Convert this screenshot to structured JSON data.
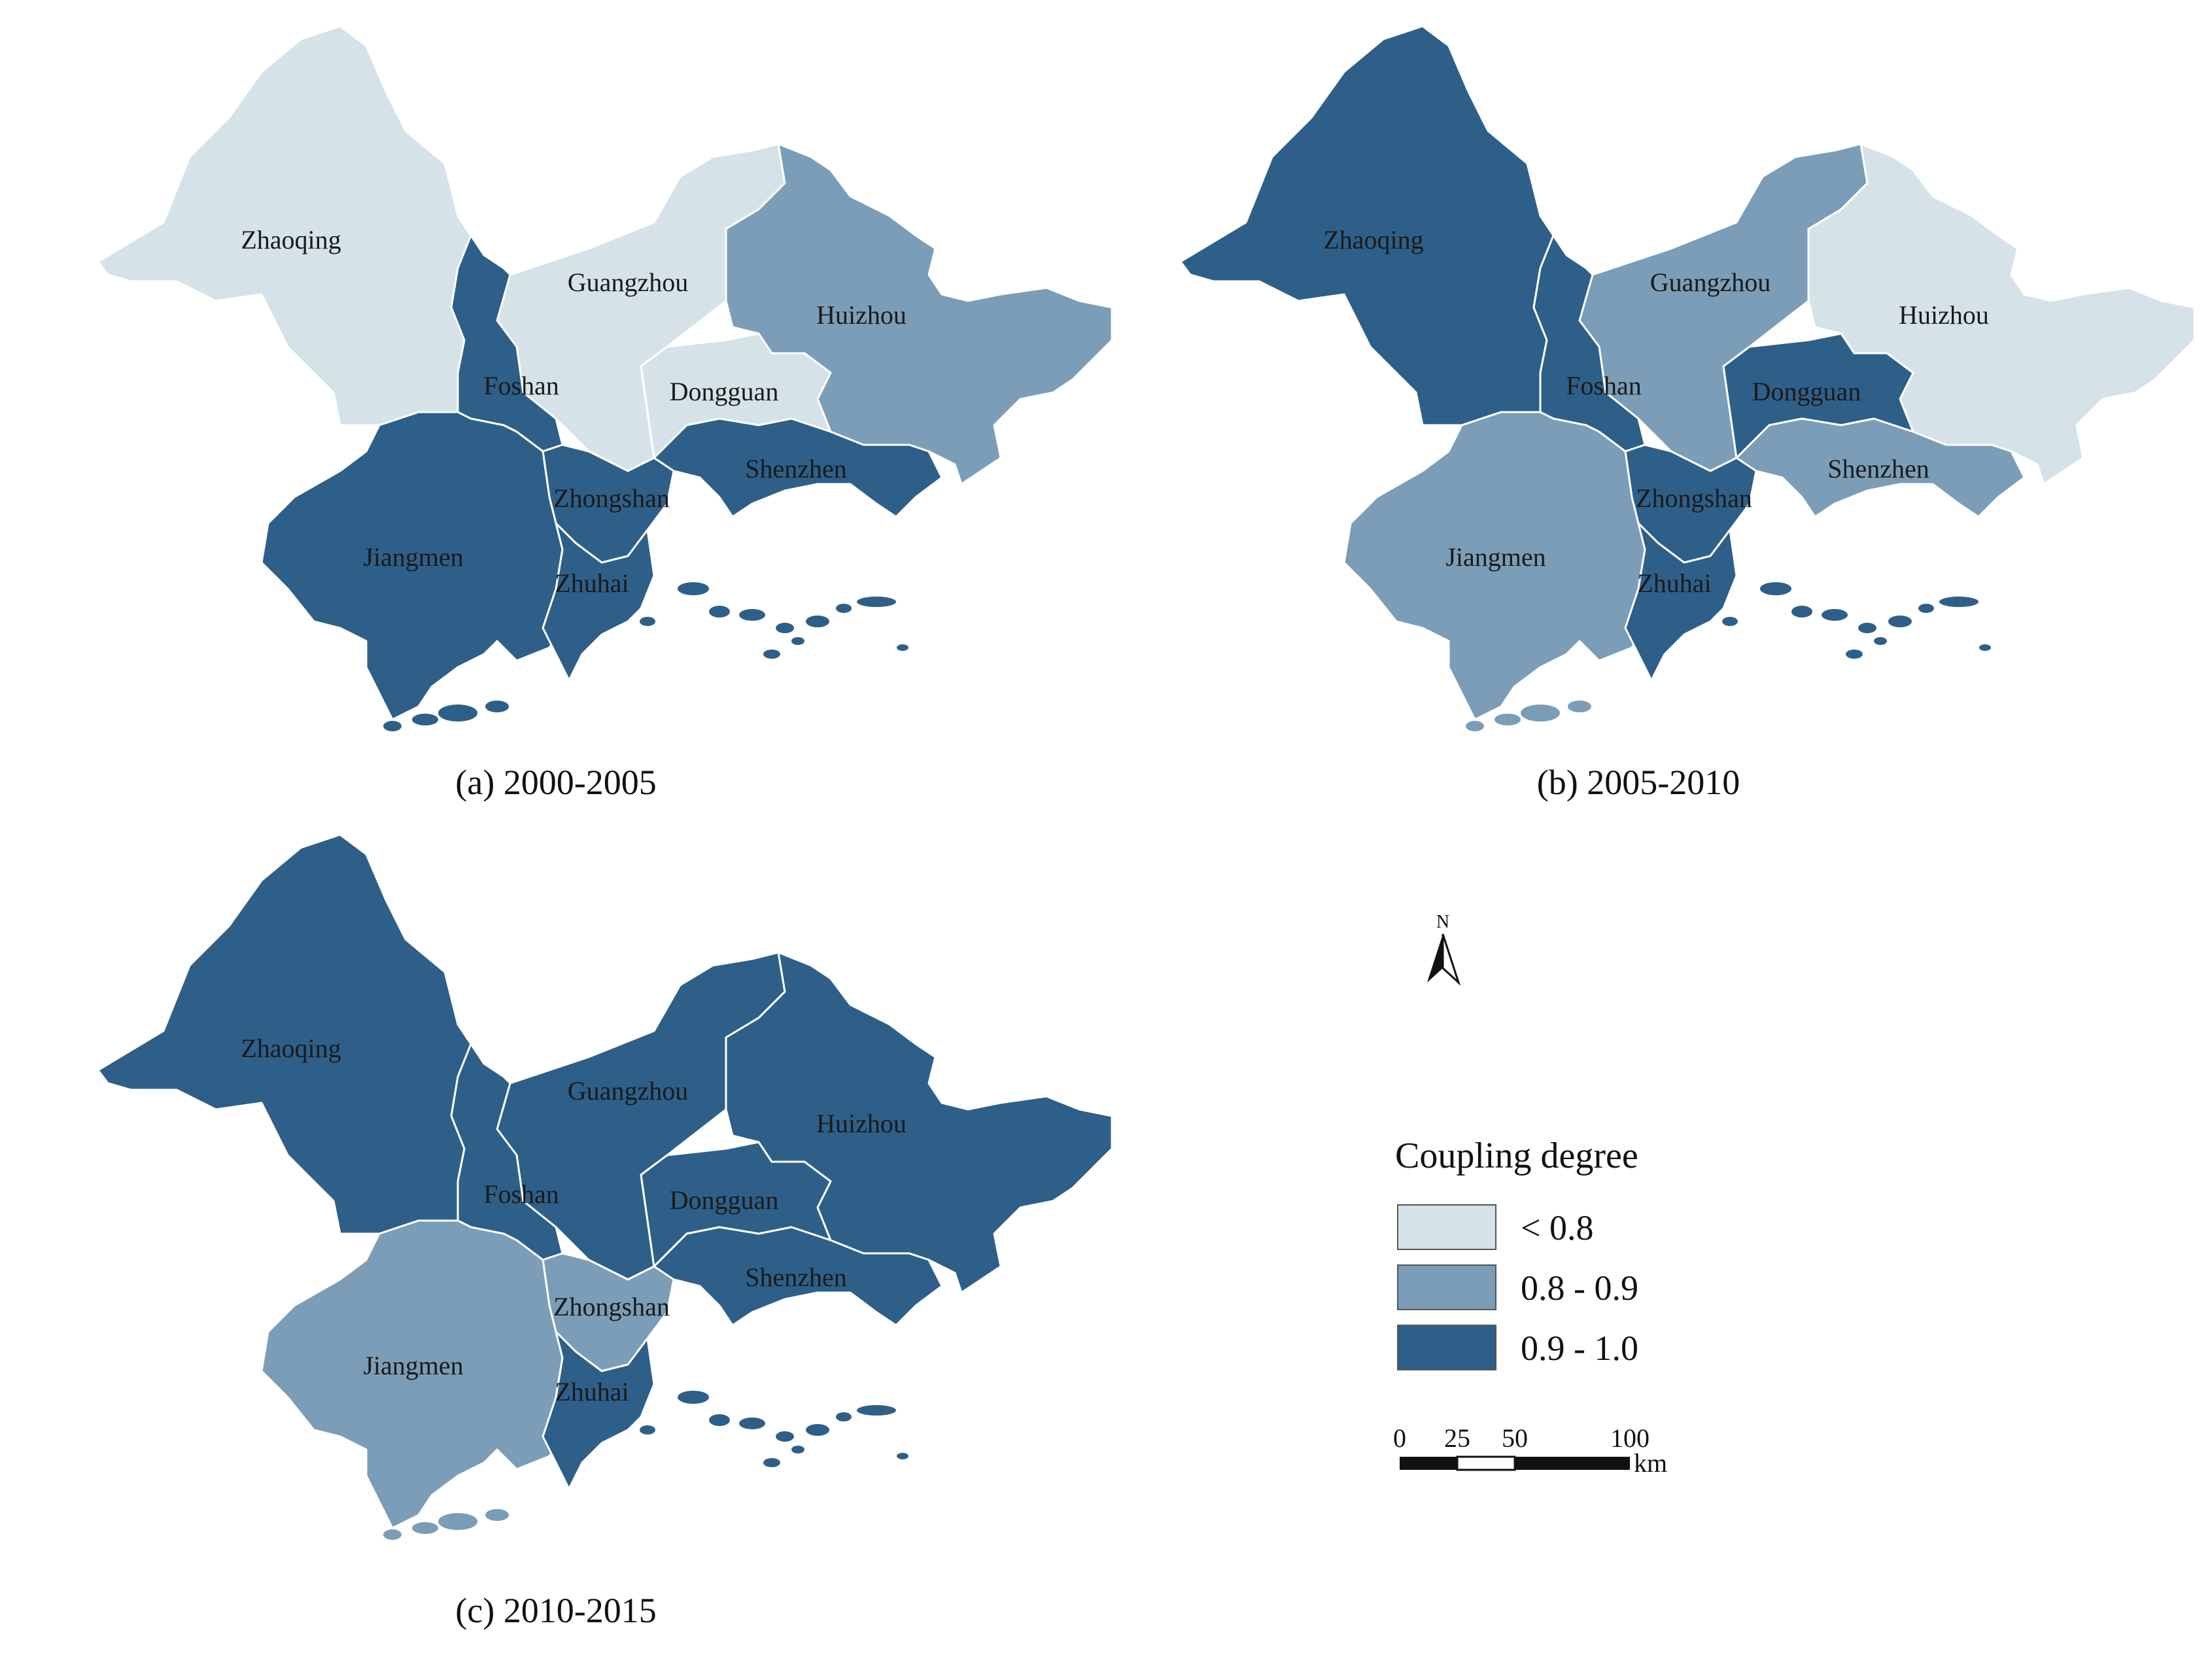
{
  "colors": {
    "low": "#d5e3e8",
    "mid": "#7b9db7",
    "high": "#2e5f88",
    "boundary": "#ffffff"
  },
  "classes": [
    {
      "key": "low",
      "label": "< 0.8"
    },
    {
      "key": "mid",
      "label": "0.8 - 0.9"
    },
    {
      "key": "high",
      "label": "0.9 - 1.0"
    }
  ],
  "legend": {
    "title": "Coupling degree"
  },
  "scalebar": {
    "ticks": [
      "0",
      "25",
      "50",
      "100"
    ],
    "unit": "km"
  },
  "north_arrow": {
    "label": "N"
  },
  "cities": [
    "Zhaoqing",
    "Guangzhou",
    "Huizhou",
    "Foshan",
    "Dongguan",
    "Shenzhen",
    "Zhongshan",
    "Jiangmen",
    "Zhuhai"
  ],
  "maps": [
    {
      "caption": "(a) 2000-2005",
      "values": {
        "Zhaoqing": "low",
        "Guangzhou": "low",
        "Huizhou": "mid",
        "Foshan": "high",
        "Dongguan": "low",
        "Shenzhen": "high",
        "Zhongshan": "high",
        "Jiangmen": "high",
        "Zhuhai": "high"
      }
    },
    {
      "caption": "(b) 2005-2010",
      "values": {
        "Zhaoqing": "high",
        "Guangzhou": "mid",
        "Huizhou": "low",
        "Foshan": "high",
        "Dongguan": "high",
        "Shenzhen": "mid",
        "Zhongshan": "high",
        "Jiangmen": "mid",
        "Zhuhai": "high"
      }
    },
    {
      "caption": "(c) 2010-2015",
      "values": {
        "Zhaoqing": "high",
        "Guangzhou": "high",
        "Huizhou": "high",
        "Foshan": "high",
        "Dongguan": "high",
        "Shenzhen": "high",
        "Zhongshan": "mid",
        "Jiangmen": "mid",
        "Zhuhai": "high"
      }
    }
  ]
}
